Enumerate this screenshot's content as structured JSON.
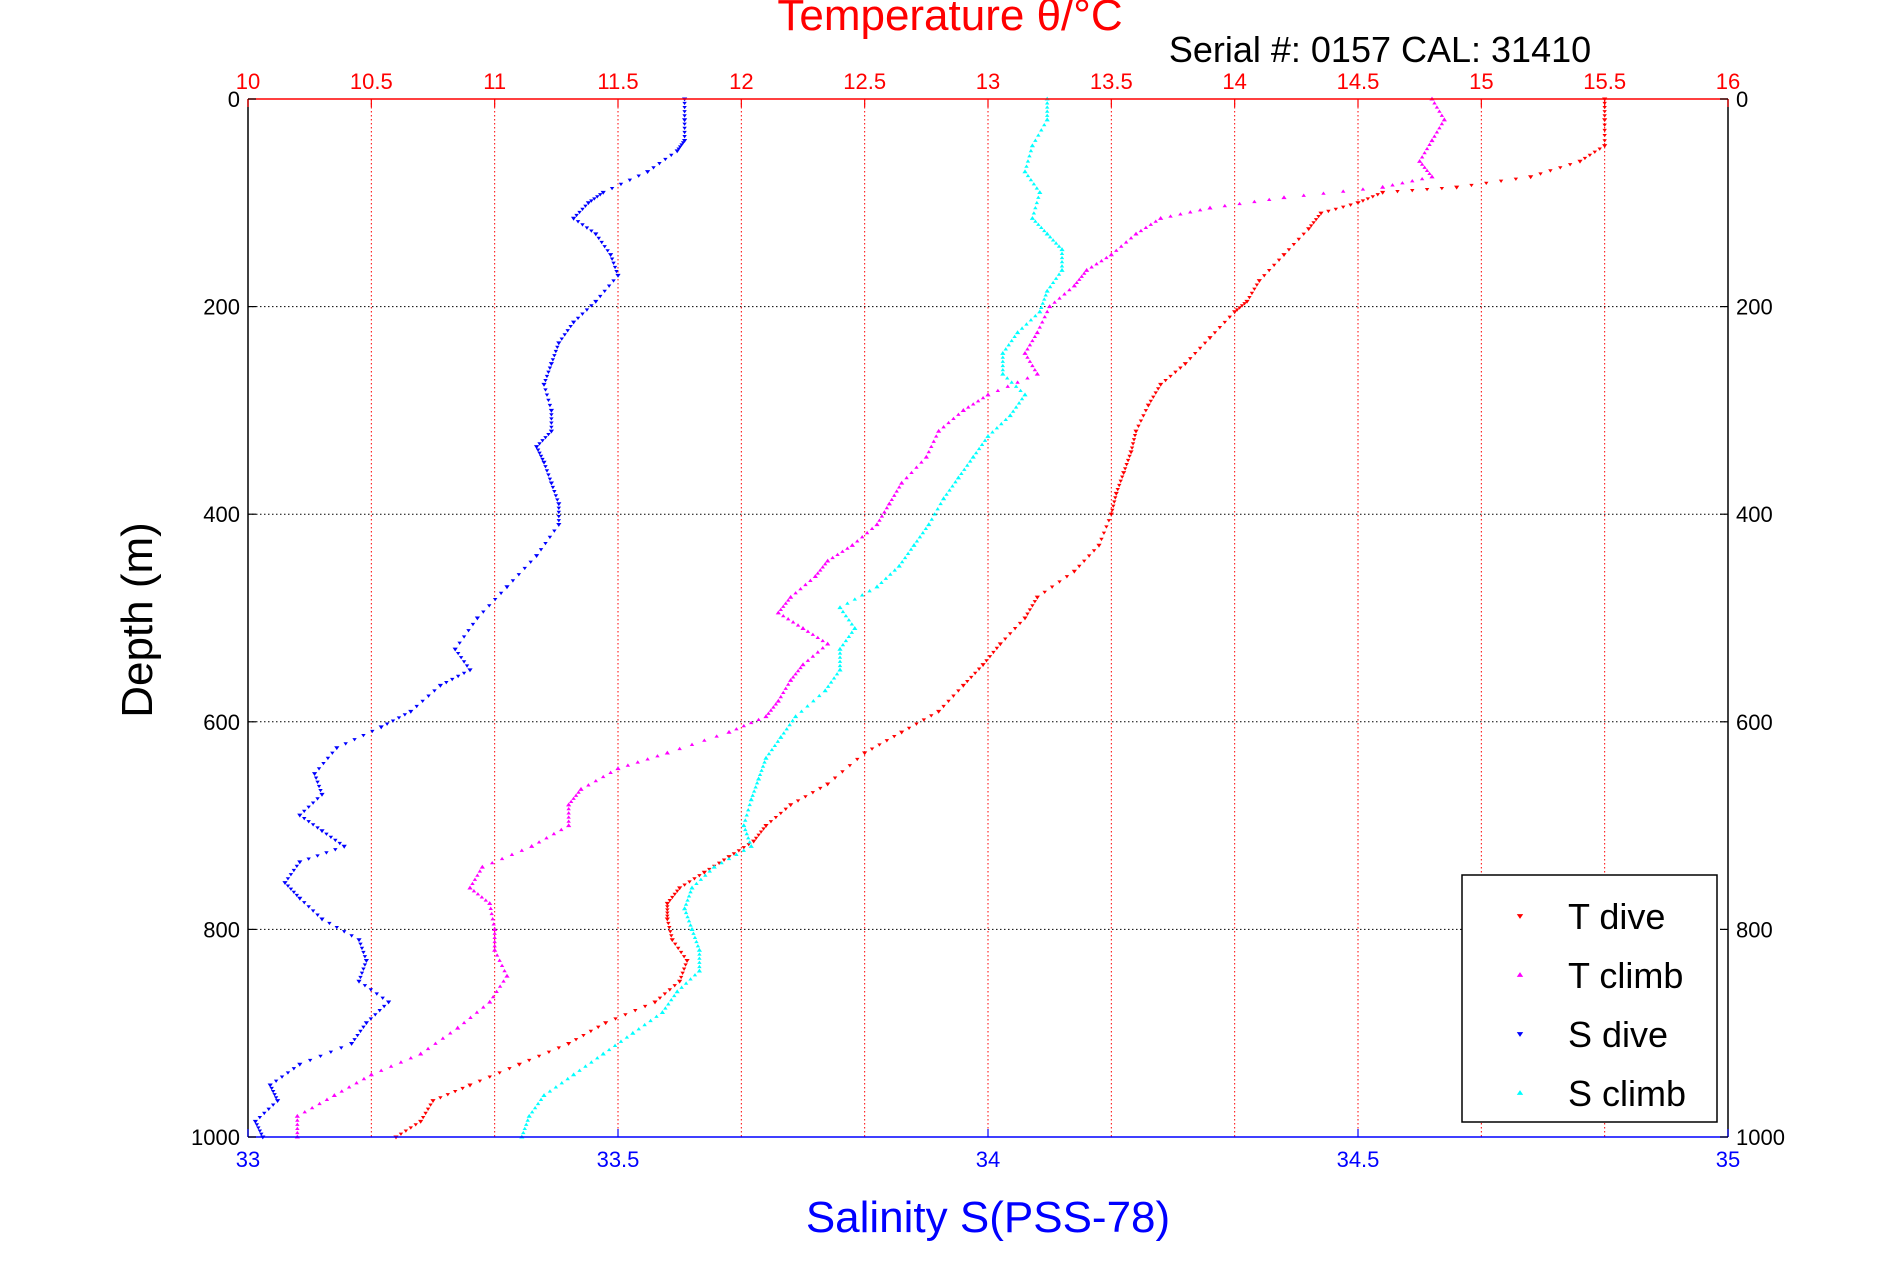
{
  "chart_data": {
    "type": "scatter",
    "title_top": "Temperature θ/°C",
    "serial_label": "Serial #: 0157  CAL: 31410",
    "xlabel": "Salinity S(PSS-78)",
    "ylabel": "Depth (m)",
    "x_salinity_lim": [
      33,
      35
    ],
    "x_temperature_lim": [
      10,
      16
    ],
    "y_depth_lim": [
      0,
      1000
    ],
    "y_reversed": true,
    "grid": true,
    "legend_position": "bottom-right",
    "salinity_ticks": [
      "33",
      "33.5",
      "34",
      "34.5",
      "35"
    ],
    "temperature_ticks": [
      "10",
      "10.5",
      "11",
      "11.5",
      "12",
      "12.5",
      "13",
      "13.5",
      "14",
      "14.5",
      "15",
      "15.5",
      "16"
    ],
    "depth_ticks": [
      "0",
      "200",
      "400",
      "600",
      "800",
      "1000"
    ],
    "series": [
      {
        "name": "T dive",
        "axis": "temperature",
        "color": "#ff0000",
        "marker": "triangle-down",
        "points": [
          [
            15.5,
            0
          ],
          [
            15.5,
            20
          ],
          [
            15.5,
            45
          ],
          [
            15.4,
            60
          ],
          [
            15.2,
            75
          ],
          [
            14.9,
            85
          ],
          [
            14.6,
            90
          ],
          [
            14.5,
            100
          ],
          [
            14.35,
            110
          ],
          [
            14.3,
            125
          ],
          [
            14.2,
            150
          ],
          [
            14.1,
            175
          ],
          [
            14.05,
            195
          ],
          [
            14.0,
            205
          ],
          [
            13.9,
            230
          ],
          [
            13.8,
            255
          ],
          [
            13.7,
            275
          ],
          [
            13.65,
            295
          ],
          [
            13.6,
            320
          ],
          [
            13.58,
            340
          ],
          [
            13.55,
            360
          ],
          [
            13.52,
            380
          ],
          [
            13.5,
            400
          ],
          [
            13.45,
            430
          ],
          [
            13.35,
            455
          ],
          [
            13.2,
            480
          ],
          [
            13.15,
            500
          ],
          [
            13.05,
            525
          ],
          [
            12.98,
            545
          ],
          [
            12.9,
            565
          ],
          [
            12.8,
            590
          ],
          [
            12.65,
            610
          ],
          [
            12.5,
            630
          ],
          [
            12.35,
            660
          ],
          [
            12.2,
            680
          ],
          [
            12.1,
            700
          ],
          [
            12.05,
            715
          ],
          [
            11.95,
            730
          ],
          [
            11.85,
            745
          ],
          [
            11.75,
            760
          ],
          [
            11.7,
            775
          ],
          [
            11.7,
            790
          ],
          [
            11.72,
            810
          ],
          [
            11.78,
            830
          ],
          [
            11.75,
            850
          ],
          [
            11.65,
            870
          ],
          [
            11.45,
            890
          ],
          [
            11.3,
            910
          ],
          [
            11.1,
            930
          ],
          [
            10.9,
            950
          ],
          [
            10.75,
            965
          ],
          [
            10.7,
            985
          ],
          [
            10.6,
            1000
          ]
        ]
      },
      {
        "name": "T climb",
        "axis": "temperature",
        "color": "#ff00ff",
        "marker": "triangle-up",
        "points": [
          [
            14.8,
            0
          ],
          [
            14.85,
            20
          ],
          [
            14.8,
            40
          ],
          [
            14.75,
            60
          ],
          [
            14.8,
            75
          ],
          [
            14.6,
            85
          ],
          [
            14.2,
            95
          ],
          [
            13.9,
            105
          ],
          [
            13.7,
            115
          ],
          [
            13.6,
            130
          ],
          [
            13.5,
            150
          ],
          [
            13.4,
            165
          ],
          [
            13.35,
            180
          ],
          [
            13.25,
            200
          ],
          [
            13.2,
            225
          ],
          [
            13.15,
            245
          ],
          [
            13.2,
            265
          ],
          [
            13.0,
            285
          ],
          [
            12.9,
            300
          ],
          [
            12.8,
            320
          ],
          [
            12.75,
            345
          ],
          [
            12.65,
            370
          ],
          [
            12.6,
            390
          ],
          [
            12.55,
            410
          ],
          [
            12.45,
            430
          ],
          [
            12.35,
            445
          ],
          [
            12.3,
            460
          ],
          [
            12.2,
            480
          ],
          [
            12.15,
            495
          ],
          [
            12.25,
            510
          ],
          [
            12.35,
            525
          ],
          [
            12.25,
            545
          ],
          [
            12.2,
            560
          ],
          [
            12.15,
            580
          ],
          [
            12.1,
            595
          ],
          [
            11.95,
            610
          ],
          [
            11.7,
            630
          ],
          [
            11.5,
            645
          ],
          [
            11.35,
            665
          ],
          [
            11.3,
            680
          ],
          [
            11.3,
            700
          ],
          [
            11.15,
            720
          ],
          [
            10.95,
            740
          ],
          [
            10.9,
            760
          ],
          [
            10.98,
            775
          ],
          [
            11.0,
            800
          ],
          [
            11.0,
            820
          ],
          [
            11.05,
            845
          ],
          [
            10.98,
            870
          ],
          [
            10.85,
            895
          ],
          [
            10.7,
            920
          ],
          [
            10.5,
            940
          ],
          [
            10.35,
            960
          ],
          [
            10.2,
            980
          ],
          [
            10.2,
            1000
          ]
        ]
      },
      {
        "name": "S dive",
        "axis": "salinity",
        "color": "#0000ff",
        "marker": "triangle-down",
        "points": [
          [
            33.59,
            0
          ],
          [
            33.59,
            20
          ],
          [
            33.59,
            40
          ],
          [
            33.58,
            50
          ],
          [
            33.54,
            70
          ],
          [
            33.48,
            90
          ],
          [
            33.46,
            100
          ],
          [
            33.44,
            115
          ],
          [
            33.47,
            130
          ],
          [
            33.49,
            150
          ],
          [
            33.5,
            170
          ],
          [
            33.47,
            195
          ],
          [
            33.44,
            215
          ],
          [
            33.42,
            235
          ],
          [
            33.41,
            255
          ],
          [
            33.4,
            275
          ],
          [
            33.41,
            300
          ],
          [
            33.41,
            320
          ],
          [
            33.39,
            335
          ],
          [
            33.4,
            350
          ],
          [
            33.41,
            370
          ],
          [
            33.42,
            390
          ],
          [
            33.42,
            410
          ],
          [
            33.39,
            440
          ],
          [
            33.35,
            470
          ],
          [
            33.31,
            500
          ],
          [
            33.28,
            530
          ],
          [
            33.3,
            550
          ],
          [
            33.26,
            565
          ],
          [
            33.22,
            590
          ],
          [
            33.18,
            605
          ],
          [
            33.12,
            625
          ],
          [
            33.09,
            650
          ],
          [
            33.1,
            670
          ],
          [
            33.07,
            690
          ],
          [
            33.1,
            705
          ],
          [
            33.13,
            720
          ],
          [
            33.07,
            735
          ],
          [
            33.05,
            755
          ],
          [
            33.07,
            770
          ],
          [
            33.1,
            790
          ],
          [
            33.15,
            810
          ],
          [
            33.16,
            830
          ],
          [
            33.15,
            850
          ],
          [
            33.19,
            870
          ],
          [
            33.16,
            890
          ],
          [
            33.14,
            910
          ],
          [
            33.07,
            930
          ],
          [
            33.03,
            950
          ],
          [
            33.04,
            965
          ],
          [
            33.01,
            985
          ],
          [
            33.02,
            1000
          ]
        ]
      },
      {
        "name": "S climb",
        "axis": "salinity",
        "color": "#00ffff",
        "marker": "triangle-up",
        "points": [
          [
            34.08,
            0
          ],
          [
            34.08,
            20
          ],
          [
            34.06,
            45
          ],
          [
            34.05,
            70
          ],
          [
            34.07,
            90
          ],
          [
            34.06,
            115
          ],
          [
            34.08,
            130
          ],
          [
            34.1,
            145
          ],
          [
            34.1,
            165
          ],
          [
            34.08,
            185
          ],
          [
            34.07,
            205
          ],
          [
            34.04,
            225
          ],
          [
            34.02,
            245
          ],
          [
            34.02,
            265
          ],
          [
            34.05,
            285
          ],
          [
            34.03,
            305
          ],
          [
            34.0,
            325
          ],
          [
            33.98,
            345
          ],
          [
            33.96,
            365
          ],
          [
            33.94,
            385
          ],
          [
            33.92,
            410
          ],
          [
            33.9,
            430
          ],
          [
            33.88,
            450
          ],
          [
            33.85,
            470
          ],
          [
            33.8,
            490
          ],
          [
            33.82,
            510
          ],
          [
            33.8,
            530
          ],
          [
            33.8,
            550
          ],
          [
            33.78,
            570
          ],
          [
            33.74,
            595
          ],
          [
            33.72,
            615
          ],
          [
            33.7,
            635
          ],
          [
            33.69,
            655
          ],
          [
            33.68,
            675
          ],
          [
            33.67,
            700
          ],
          [
            33.68,
            720
          ],
          [
            33.63,
            740
          ],
          [
            33.6,
            760
          ],
          [
            33.59,
            780
          ],
          [
            33.6,
            800
          ],
          [
            33.61,
            820
          ],
          [
            33.61,
            840
          ],
          [
            33.58,
            860
          ],
          [
            33.56,
            880
          ],
          [
            33.52,
            900
          ],
          [
            33.48,
            920
          ],
          [
            33.44,
            940
          ],
          [
            33.4,
            960
          ],
          [
            33.38,
            980
          ],
          [
            33.37,
            1000
          ]
        ]
      }
    ]
  }
}
